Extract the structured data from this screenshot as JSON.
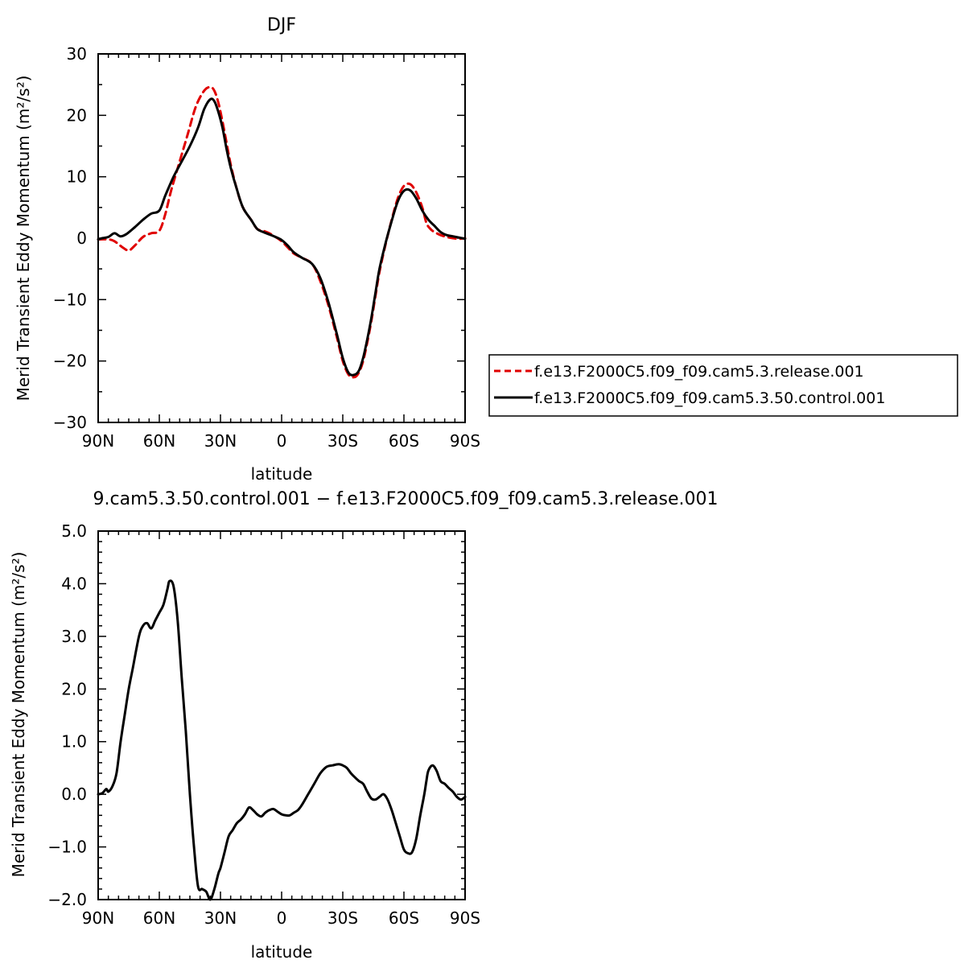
{
  "chart_data": [
    {
      "type": "line",
      "title": "DJF",
      "xlabel": "latitude",
      "ylabel": "Merid Transient Eddy Momentum (m²/s²)",
      "xlim": [
        90,
        -90
      ],
      "ylim": [
        -30,
        30
      ],
      "x_ticks": [
        90,
        60,
        30,
        0,
        -30,
        -60,
        -90
      ],
      "x_tick_labels": [
        "90N",
        "60N",
        "30N",
        "0",
        "30S",
        "60S",
        "90S"
      ],
      "y_ticks": [
        -30,
        -20,
        -10,
        0,
        10,
        20,
        30
      ],
      "y_tick_labels": [
        "−30",
        "−20",
        "−10",
        "0",
        "10",
        "20",
        "30"
      ],
      "legend_position": "right",
      "series": [
        {
          "name": "f.e13.F2000C5.f09_f09.cam5.3.release.001",
          "color": "#e00000",
          "dash": "dashed",
          "x": [
            90,
            85,
            82,
            78,
            75,
            72,
            68,
            64,
            60,
            57,
            54,
            50,
            46,
            42,
            38,
            35,
            33,
            31,
            29,
            27,
            25,
            22,
            19,
            15,
            12,
            9,
            6,
            3,
            0,
            -3,
            -6,
            -10,
            -15,
            -19,
            -23,
            -27,
            -30,
            -33,
            -36,
            -38,
            -40,
            -42,
            -44,
            -46,
            -48,
            -51,
            -54,
            -57,
            -60,
            -63,
            -66,
            -69,
            -71,
            -73,
            -75,
            -78,
            -81,
            -84,
            -87,
            -90
          ],
          "y": [
            -0.2,
            -0.2,
            -0.5,
            -1.5,
            -2.0,
            -1.2,
            0.2,
            0.8,
            1.2,
            4.0,
            8.0,
            12.5,
            17.0,
            21.5,
            24.0,
            24.6,
            24.0,
            22.0,
            19.0,
            15.5,
            12.0,
            8.0,
            5.0,
            3.0,
            1.5,
            1.2,
            0.8,
            0.2,
            -0.5,
            -1.5,
            -2.5,
            -3.2,
            -4.2,
            -7.0,
            -11.0,
            -16.0,
            -20.0,
            -22.3,
            -22.6,
            -21.8,
            -20.0,
            -17.0,
            -13.5,
            -9.5,
            -5.5,
            -1.0,
            3.0,
            6.5,
            8.5,
            8.8,
            7.5,
            5.0,
            2.5,
            1.5,
            1.0,
            0.5,
            0.2,
            0.0,
            -0.1,
            0.0
          ]
        },
        {
          "name": "f.e13.F2000C5.f09_f09.cam5.3.50.control.001",
          "color": "#000000",
          "dash": "solid",
          "x": [
            90,
            88,
            85,
            82,
            79,
            76,
            72,
            68,
            64,
            60,
            57,
            53,
            49,
            45,
            41,
            38,
            35,
            33,
            31,
            29,
            27,
            25,
            22,
            19,
            15,
            12,
            9,
            6,
            3,
            0,
            -3,
            -6,
            -10,
            -15,
            -19,
            -23,
            -27,
            -30,
            -33,
            -36,
            -38,
            -40,
            -42,
            -44,
            -46,
            -48,
            -51,
            -54,
            -57,
            -60,
            -63,
            -66,
            -69,
            -72,
            -75,
            -78,
            -81,
            -84,
            -87,
            -90
          ],
          "y": [
            -0.2,
            0.0,
            0.2,
            0.8,
            0.3,
            0.7,
            1.8,
            3.0,
            4.0,
            4.5,
            7.0,
            10.0,
            12.5,
            15.0,
            18.0,
            21.0,
            22.6,
            22.3,
            20.5,
            18.0,
            14.5,
            11.5,
            8.0,
            5.0,
            3.0,
            1.5,
            1.0,
            0.6,
            0.2,
            -0.3,
            -1.2,
            -2.3,
            -3.2,
            -4.2,
            -6.5,
            -10.5,
            -15.5,
            -19.5,
            -22.0,
            -22.2,
            -21.5,
            -19.5,
            -16.5,
            -13.0,
            -9.0,
            -5.0,
            -0.8,
            2.8,
            6.0,
            7.7,
            7.8,
            6.5,
            4.5,
            3.0,
            2.0,
            1.0,
            0.5,
            0.3,
            0.1,
            -0.1
          ]
        }
      ]
    },
    {
      "type": "line",
      "title": "9.cam5.3.50.control.001 − f.e13.F2000C5.f09_f09.cam5.3.release.001",
      "xlabel": "latitude",
      "ylabel": "Merid Transient Eddy Momentum (m²/s²)",
      "xlim": [
        90,
        -90
      ],
      "ylim": [
        -2.0,
        5.0
      ],
      "x_ticks": [
        90,
        60,
        30,
        0,
        -30,
        -60,
        -90
      ],
      "x_tick_labels": [
        "90N",
        "60N",
        "30N",
        "0",
        "30S",
        "60S",
        "90S"
      ],
      "y_ticks": [
        -2.0,
        -1.0,
        0.0,
        1.0,
        2.0,
        3.0,
        4.0,
        5.0
      ],
      "y_tick_labels": [
        "−2.0",
        "−1.0",
        "0.0",
        "1.0",
        "2.0",
        "3.0",
        "4.0",
        "5.0"
      ],
      "series": [
        {
          "color": "#000000",
          "dash": "solid",
          "x": [
            90,
            88,
            86,
            85,
            83,
            81,
            79,
            77,
            75,
            73,
            70,
            68,
            66,
            64,
            62,
            60,
            58,
            56,
            55,
            53,
            51,
            49,
            47,
            45,
            43,
            41,
            39,
            37,
            35,
            33,
            31,
            30,
            28,
            26,
            24,
            22,
            20,
            18,
            16,
            14,
            12,
            10,
            8,
            6,
            4,
            2,
            0,
            -2,
            -4,
            -6,
            -8,
            -10,
            -13,
            -16,
            -19,
            -22,
            -25,
            -28,
            -30,
            -32,
            -34,
            -36,
            -38,
            -40,
            -42,
            -44,
            -46,
            -48,
            -50,
            -52,
            -54,
            -56,
            -58,
            -60,
            -62,
            -64,
            -66,
            -68,
            -70,
            -71,
            -72,
            -74,
            -76,
            -78,
            -80,
            -82,
            -84,
            -86,
            -88,
            -90
          ],
          "y": [
            0.0,
            0.02,
            0.1,
            0.05,
            0.15,
            0.4,
            1.0,
            1.5,
            2.0,
            2.4,
            3.0,
            3.2,
            3.25,
            3.15,
            3.3,
            3.45,
            3.6,
            3.9,
            4.05,
            3.95,
            3.3,
            2.2,
            1.2,
            0.0,
            -1.0,
            -1.75,
            -1.8,
            -1.85,
            -2.0,
            -1.8,
            -1.5,
            -1.4,
            -1.1,
            -0.8,
            -0.68,
            -0.55,
            -0.48,
            -0.38,
            -0.25,
            -0.3,
            -0.38,
            -0.42,
            -0.35,
            -0.3,
            -0.28,
            -0.33,
            -0.38,
            -0.4,
            -0.4,
            -0.35,
            -0.3,
            -0.2,
            0.0,
            0.2,
            0.4,
            0.52,
            0.55,
            0.57,
            0.55,
            0.5,
            0.4,
            0.32,
            0.25,
            0.2,
            0.05,
            -0.08,
            -0.1,
            -0.05,
            0.0,
            -0.1,
            -0.3,
            -0.55,
            -0.8,
            -1.05,
            -1.12,
            -1.1,
            -0.85,
            -0.4,
            0.0,
            0.25,
            0.45,
            0.55,
            0.45,
            0.25,
            0.2,
            0.12,
            0.05,
            -0.05,
            -0.1,
            -0.05
          ]
        }
      ]
    }
  ]
}
